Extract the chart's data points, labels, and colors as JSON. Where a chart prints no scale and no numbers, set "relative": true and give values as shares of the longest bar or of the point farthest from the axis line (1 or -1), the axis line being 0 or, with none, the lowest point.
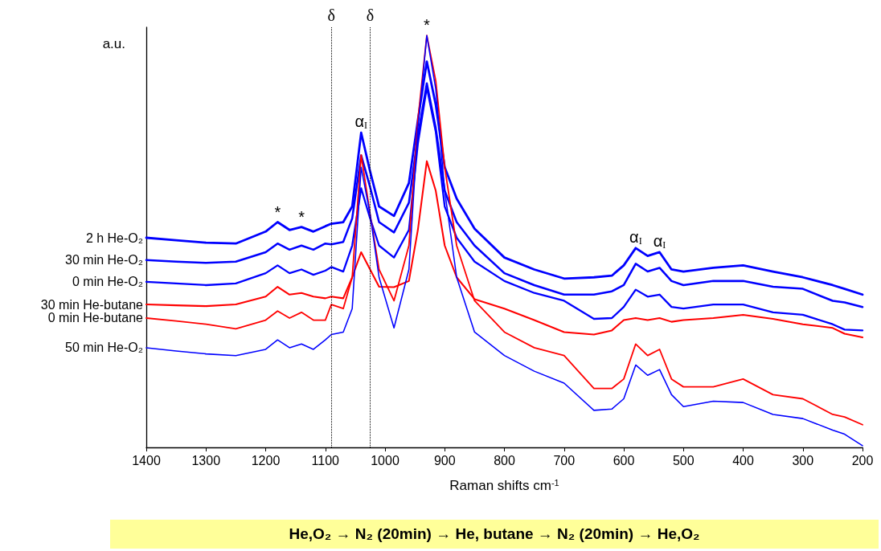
{
  "chart_data": {
    "type": "line",
    "relative": true,
    "xlabel": "Raman shifts cm$^{-1}$",
    "ylabel": "a.u.",
    "xlim": [
      1400,
      200
    ],
    "xticks": [
      1400,
      1300,
      1200,
      1100,
      1000,
      900,
      800,
      700,
      600,
      500,
      400,
      300,
      200
    ],
    "legend": false,
    "grid": false,
    "marker": "none",
    "line_style": "solid",
    "x": [
      1400,
      1350,
      1300,
      1250,
      1200,
      1180,
      1160,
      1140,
      1120,
      1100,
      1090,
      1070,
      1055,
      1040,
      1025,
      1010,
      985,
      960,
      945,
      930,
      915,
      900,
      880,
      850,
      800,
      750,
      700,
      650,
      620,
      600,
      580,
      560,
      540,
      520,
      500,
      450,
      400,
      350,
      300,
      250,
      230,
      200
    ],
    "series": [
      {
        "name": "2 h He-O₂",
        "color": "#0000ff",
        "values": [
          0.509,
          0.503,
          0.497,
          0.495,
          0.524,
          0.547,
          0.528,
          0.535,
          0.524,
          0.537,
          0.543,
          0.547,
          0.585,
          0.764,
          0.67,
          0.585,
          0.562,
          0.642,
          0.794,
          0.937,
          0.832,
          0.68,
          0.604,
          0.531,
          0.461,
          0.432,
          0.41,
          0.413,
          0.417,
          0.442,
          0.484,
          0.465,
          0.474,
          0.432,
          0.427,
          0.436,
          0.442,
          0.427,
          0.413,
          0.394,
          0.385,
          0.371
        ]
      },
      {
        "name": "30 min He-O₂",
        "color": "#0000ff",
        "values": [
          0.455,
          0.451,
          0.448,
          0.451,
          0.474,
          0.495,
          0.48,
          0.49,
          0.48,
          0.495,
          0.493,
          0.499,
          0.556,
          0.709,
          0.632,
          0.547,
          0.522,
          0.594,
          0.756,
          0.884,
          0.775,
          0.623,
          0.547,
          0.49,
          0.423,
          0.394,
          0.371,
          0.371,
          0.379,
          0.394,
          0.446,
          0.427,
          0.436,
          0.404,
          0.394,
          0.404,
          0.404,
          0.39,
          0.385,
          0.356,
          0.352,
          0.341
        ]
      },
      {
        "name": "0 min He-O₂",
        "color": "#0000ff",
        "values": [
          0.402,
          0.398,
          0.394,
          0.398,
          0.423,
          0.442,
          0.423,
          0.432,
          0.419,
          0.429,
          0.438,
          0.427,
          0.49,
          0.629,
          0.556,
          0.49,
          0.461,
          0.528,
          0.737,
          0.874,
          0.766,
          0.585,
          0.509,
          0.451,
          0.404,
          0.375,
          0.356,
          0.312,
          0.314,
          0.341,
          0.383,
          0.366,
          0.371,
          0.341,
          0.337,
          0.347,
          0.347,
          0.328,
          0.322,
          0.299,
          0.286,
          0.284
        ]
      },
      {
        "name": "30 min He-butane",
        "color": "#ff0000",
        "values": [
          0.347,
          0.345,
          0.343,
          0.347,
          0.366,
          0.39,
          0.371,
          0.375,
          0.366,
          0.362,
          0.366,
          0.362,
          0.413,
          0.474,
          0.432,
          0.39,
          0.389,
          0.404,
          0.528,
          0.695,
          0.623,
          0.49,
          0.413,
          0.36,
          0.337,
          0.309,
          0.28,
          0.274,
          0.284,
          0.309,
          0.314,
          0.309,
          0.314,
          0.305,
          0.309,
          0.314,
          0.322,
          0.312,
          0.299,
          0.29,
          0.276,
          0.267
        ]
      },
      {
        "name": "0 min He-butane",
        "color": "#ff0000",
        "values": [
          0.314,
          0.307,
          0.299,
          0.288,
          0.309,
          0.331,
          0.314,
          0.328,
          0.309,
          0.309,
          0.347,
          0.337,
          0.413,
          0.71,
          0.566,
          0.432,
          0.356,
          0.49,
          0.794,
          1,
          0.89,
          0.68,
          0.49,
          0.356,
          0.28,
          0.242,
          0.223,
          0.143,
          0.143,
          0.166,
          0.251,
          0.223,
          0.238,
          0.166,
          0.147,
          0.147,
          0.166,
          0.128,
          0.118,
          0.08,
          0.074,
          0.055
        ]
      },
      {
        "name": "50 min He-O₂",
        "color": "#0000ff",
        "values": [
          0.242,
          0.234,
          0.227,
          0.223,
          0.238,
          0.261,
          0.242,
          0.251,
          0.238,
          0.261,
          0.274,
          0.28,
          0.337,
          0.68,
          0.566,
          0.413,
          0.29,
          0.432,
          0.775,
          1,
          0.87,
          0.623,
          0.413,
          0.28,
          0.223,
          0.185,
          0.156,
          0.09,
          0.093,
          0.118,
          0.2,
          0.175,
          0.189,
          0.128,
          0.099,
          0.112,
          0.109,
          0.08,
          0.07,
          0.042,
          0.032,
          0.004
        ]
      }
    ],
    "ref_lines": [
      {
        "axis": "x",
        "value": 1090,
        "label": "δ",
        "color": "#000000",
        "line_style": "dotted"
      },
      {
        "axis": "x",
        "value": 1025,
        "label": "δ",
        "color": "#000000",
        "line_style": "dotted"
      }
    ],
    "annotations": [
      {
        "text": "*",
        "x": 930,
        "y": 1
      },
      {
        "text": "α$_{I}$",
        "x": 1040,
        "y": 0.764
      },
      {
        "text": "*",
        "x": 1180,
        "y": 0.547
      },
      {
        "text": "*",
        "x": 1140,
        "y": 0.535
      },
      {
        "text": "α$_{I}$",
        "x": 580,
        "y": 0.484
      },
      {
        "text": "α$_{I}$",
        "x": 540,
        "y": 0.474
      },
      "He,O₂ → N₂ (20min) → He, butane → N₂ (20min) → He,O₂"
    ]
  }
}
